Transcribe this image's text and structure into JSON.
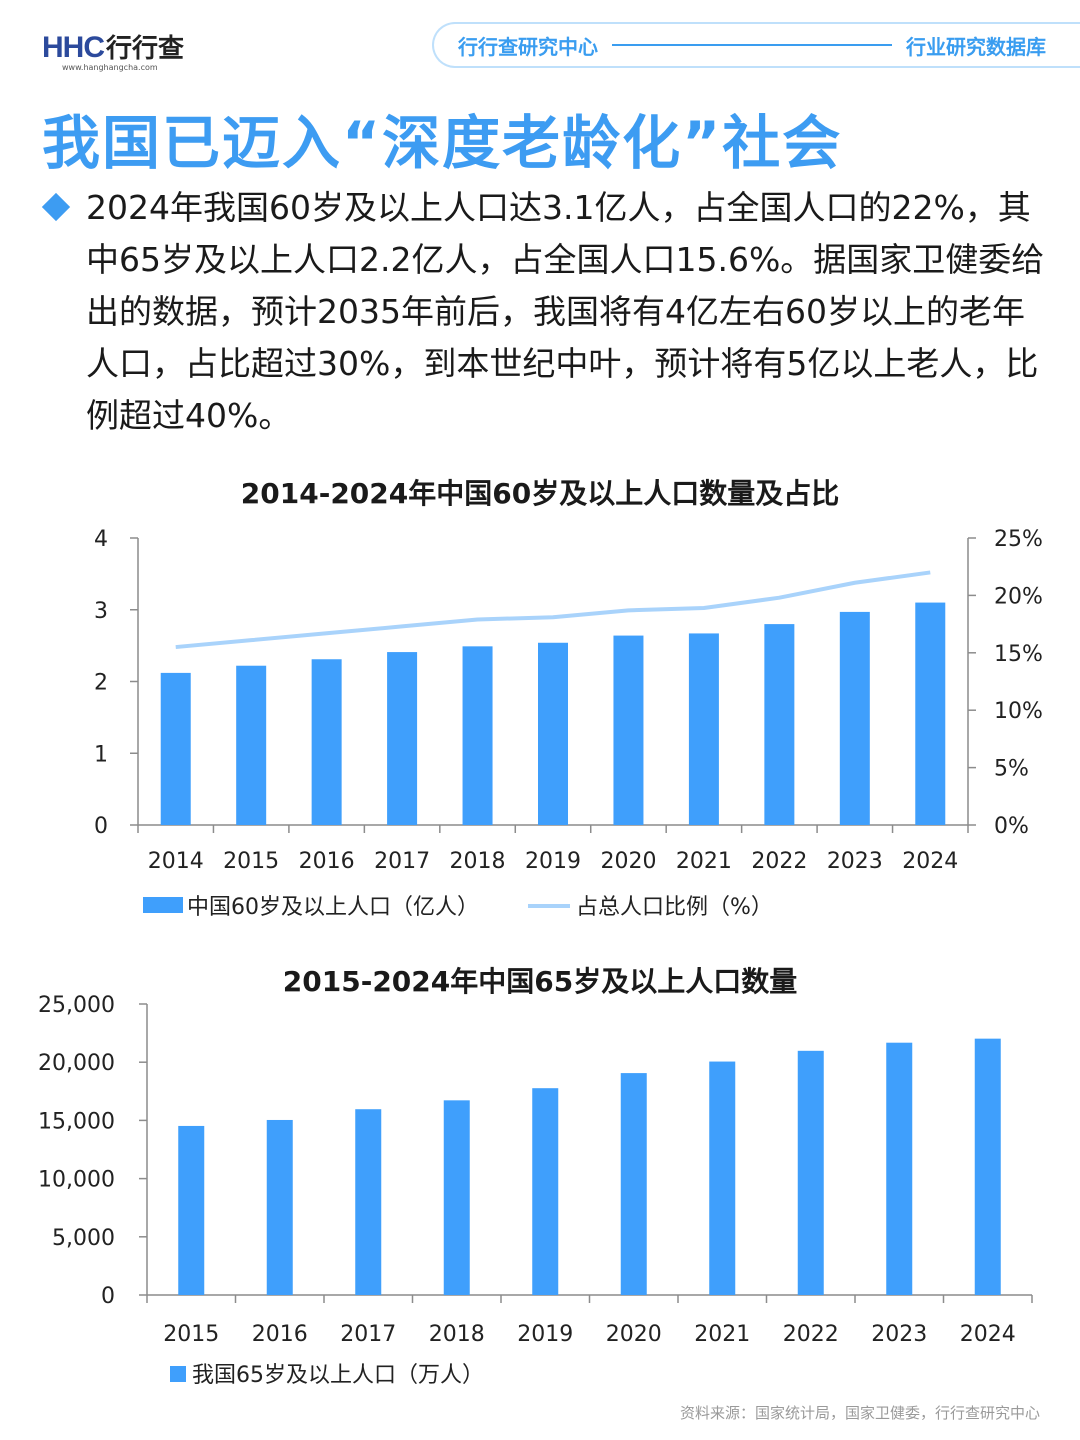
{
  "header": {
    "logo_text": "HHC",
    "logo_cn": "行行查",
    "logo_url": "www.hanghangcha.com",
    "pill_left": "行行查研究中心",
    "pill_right": "行业研究数据库"
  },
  "title": "我国已迈入“深度老龄化”社会",
  "intro": "2024年我国60岁及以上人口达3.1亿人，占全国人口的22%，其中65岁及以上人口2.2亿人，占全国人口15.6%。据国家卫健委给出的数据，预计2035年前后，我国将有4亿左右60岁以上的老年人口，占比超过30%，到本世纪中叶，预计将有5亿以上老人，比例超过40%。",
  "colors": {
    "accent": "#3d9cf2",
    "bar": "#3f9ffc",
    "line": "#a9d3fb"
  },
  "chart_data": [
    {
      "type": "bar",
      "title": "2014-2024年中国60岁及以上人口数量及占比",
      "categories": [
        "2014",
        "2015",
        "2016",
        "2017",
        "2018",
        "2019",
        "2020",
        "2021",
        "2022",
        "2023",
        "2024"
      ],
      "series": [
        {
          "name": "中国60岁及以上人口（亿人）",
          "type": "bar",
          "axis": "left",
          "values": [
            2.12,
            2.22,
            2.31,
            2.41,
            2.49,
            2.54,
            2.64,
            2.67,
            2.8,
            2.97,
            3.1
          ]
        },
        {
          "name": "占总人口比例（%）",
          "type": "line",
          "axis": "right",
          "values": [
            15.5,
            16.1,
            16.7,
            17.3,
            17.9,
            18.1,
            18.7,
            18.9,
            19.8,
            21.1,
            22.0
          ]
        }
      ],
      "ylim": [
        0,
        4
      ],
      "yticks": [
        "0",
        "1",
        "2",
        "3",
        "4"
      ],
      "y2lim": [
        0,
        25
      ],
      "y2ticks": [
        "0%",
        "5%",
        "10%",
        "15%",
        "20%",
        "25%"
      ],
      "grid": false,
      "legend": "bottom-left"
    },
    {
      "type": "bar",
      "title": "2015-2024年中国65岁及以上人口数量",
      "categories": [
        "2015",
        "2016",
        "2017",
        "2018",
        "2019",
        "2020",
        "2021",
        "2022",
        "2023",
        "2024"
      ],
      "series": [
        {
          "name": "我国65岁及以上人口（万人）",
          "values": [
            14524,
            15037,
            15961,
            16724,
            17767,
            19064,
            20056,
            20978,
            21676,
            22023
          ]
        }
      ],
      "ylim": [
        0,
        25000
      ],
      "yticks": [
        "0",
        "5,000",
        "10,000",
        "15,000",
        "20,000",
        "25,000"
      ],
      "grid": false,
      "legend": "bottom-left"
    }
  ],
  "source": "资料来源：国家统计局，国家卫健委，行行查研究中心"
}
